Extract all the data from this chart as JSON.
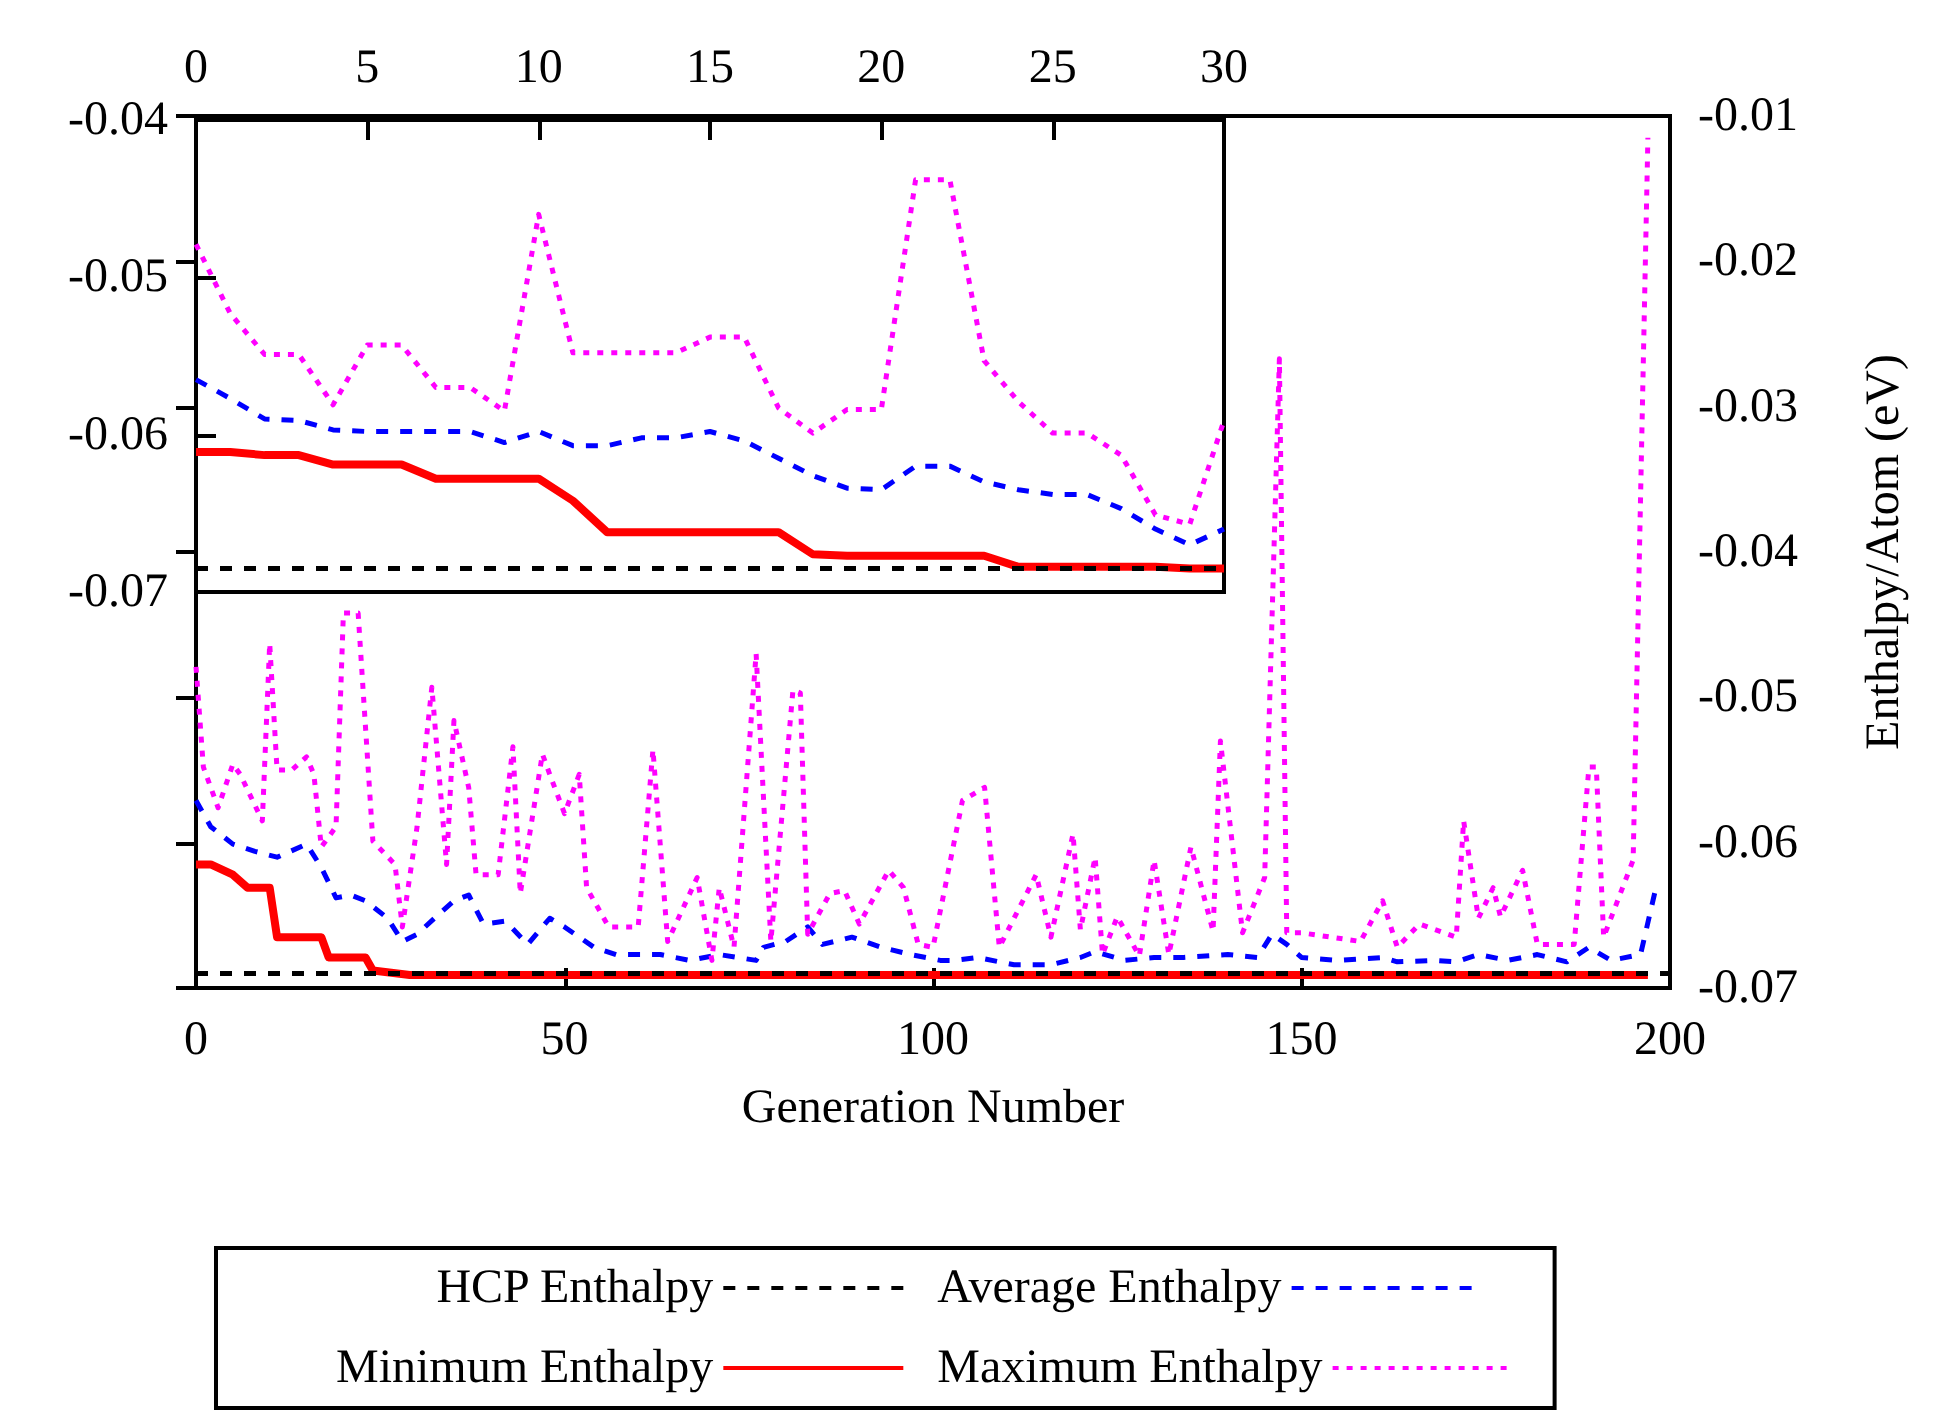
{
  "chart_data": [
    {
      "type": "line",
      "xlabel": "Generation Number",
      "y2label": "Enthalpy/Atom (eV)",
      "xlim": [
        0,
        200
      ],
      "xticks": [
        0,
        50,
        100,
        150,
        200
      ],
      "y2lim": [
        -0.07,
        -0.01
      ],
      "y2ticks": [
        -0.07,
        -0.06,
        -0.05,
        -0.04,
        -0.03,
        -0.02,
        -0.01
      ],
      "legend": "bottom",
      "marker": "none",
      "grid": false,
      "series": [
        {
          "name": "HCP Enthalpy",
          "color": "#000000",
          "line_style": "dashed",
          "axis": "y2",
          "x": [
            0,
            200
          ],
          "values": [
            -0.069,
            -0.069
          ]
        },
        {
          "name": "Average Enthalpy",
          "color": "#0000ff",
          "line_style": "dashed",
          "axis": "y2",
          "x": [
            0,
            2,
            5,
            8,
            11,
            15,
            17,
            19,
            21,
            23,
            26,
            28,
            30,
            33,
            35,
            37,
            39,
            42,
            45,
            48,
            50,
            54,
            57,
            63,
            67,
            71,
            76,
            77,
            80,
            83,
            85,
            89,
            93,
            97,
            101,
            103,
            106,
            111,
            116,
            120,
            122,
            126,
            130,
            134,
            140,
            144,
            146,
            148,
            150,
            155,
            161,
            163,
            168,
            171,
            174,
            178,
            182,
            186,
            189,
            192,
            196,
            198
          ],
          "values": [
            -0.0571,
            -0.0589,
            -0.0601,
            -0.0606,
            -0.061,
            -0.0601,
            -0.0617,
            -0.0638,
            -0.0636,
            -0.064,
            -0.0652,
            -0.0668,
            -0.0663,
            -0.0649,
            -0.064,
            -0.0636,
            -0.0656,
            -0.0654,
            -0.067,
            -0.0652,
            -0.0658,
            -0.0672,
            -0.0677,
            -0.0677,
            -0.0681,
            -0.0677,
            -0.0681,
            -0.0672,
            -0.0668,
            -0.0658,
            -0.067,
            -0.0665,
            -0.0672,
            -0.0677,
            -0.0681,
            -0.0681,
            -0.0679,
            -0.0684,
            -0.0684,
            -0.0679,
            -0.0675,
            -0.0681,
            -0.0679,
            -0.0679,
            -0.0677,
            -0.0679,
            -0.0663,
            -0.067,
            -0.0679,
            -0.0681,
            -0.0679,
            -0.0682,
            -0.0681,
            -0.0682,
            -0.0677,
            -0.0681,
            -0.0677,
            -0.0682,
            -0.0672,
            -0.0681,
            -0.0677,
            -0.0633
          ]
        },
        {
          "name": "Minimum Enthalpy",
          "color": "#ff0000",
          "line_style": "solid",
          "axis": "y2",
          "x": [
            0,
            2,
            5,
            7,
            10,
            11,
            17,
            18,
            23,
            24,
            29,
            197
          ],
          "values": [
            -0.0615,
            -0.0615,
            -0.0622,
            -0.0631,
            -0.0631,
            -0.0665,
            -0.0665,
            -0.0679,
            -0.0679,
            -0.0688,
            -0.0691,
            -0.0691
          ]
        },
        {
          "name": "Maximum Enthalpy",
          "color": "#ff00ff",
          "line_style": "dotted",
          "axis": "y2",
          "x": [
            0,
            1,
            3,
            5,
            6,
            9,
            10,
            11,
            13,
            15,
            16,
            17,
            19,
            20,
            22,
            24,
            27,
            28,
            30,
            32,
            34,
            35,
            37,
            38,
            41,
            43,
            44,
            47,
            48,
            50,
            52,
            53,
            56,
            60,
            62,
            64,
            68,
            70,
            71,
            73,
            76,
            78,
            81,
            82,
            83,
            86,
            88,
            90,
            94,
            96,
            98,
            100,
            104,
            107,
            109,
            114,
            116,
            119,
            120,
            122,
            123,
            125,
            128,
            130,
            132,
            135,
            138,
            139,
            142,
            145,
            147,
            148,
            150,
            158,
            161,
            163,
            166,
            171,
            172,
            174,
            176,
            177,
            180,
            182,
            187,
            189,
            190,
            191,
            195,
            197
          ],
          "values": [
            -0.0479,
            -0.0548,
            -0.0576,
            -0.0546,
            -0.0553,
            -0.0585,
            -0.0463,
            -0.055,
            -0.055,
            -0.0541,
            -0.0553,
            -0.0603,
            -0.0589,
            -0.0442,
            -0.0442,
            -0.0599,
            -0.0615,
            -0.0658,
            -0.0589,
            -0.0493,
            -0.0615,
            -0.0516,
            -0.0562,
            -0.0622,
            -0.0622,
            -0.0534,
            -0.0635,
            -0.0539,
            -0.0553,
            -0.058,
            -0.0553,
            -0.0631,
            -0.0658,
            -0.0658,
            -0.0536,
            -0.0668,
            -0.0624,
            -0.0681,
            -0.0631,
            -0.0672,
            -0.047,
            -0.0668,
            -0.0495,
            -0.0497,
            -0.0663,
            -0.0635,
            -0.0633,
            -0.0656,
            -0.0619,
            -0.0631,
            -0.067,
            -0.0672,
            -0.0571,
            -0.0562,
            -0.0672,
            -0.0622,
            -0.0665,
            -0.0594,
            -0.066,
            -0.061,
            -0.0677,
            -0.0651,
            -0.0678,
            -0.0612,
            -0.0677,
            -0.0603,
            -0.0661,
            -0.053,
            -0.0662,
            -0.0624,
            -0.0267,
            -0.0662,
            -0.0662,
            -0.0668,
            -0.064,
            -0.0672,
            -0.0656,
            -0.0665,
            -0.0585,
            -0.0652,
            -0.0631,
            -0.0651,
            -0.0619,
            -0.067,
            -0.067,
            -0.0548,
            -0.0548,
            -0.0665,
            -0.0612,
            -0.0115
          ]
        }
      ]
    },
    {
      "type": "line",
      "x": [
        0,
        1,
        2,
        3,
        4,
        5,
        6,
        7,
        8,
        9,
        10,
        11,
        12,
        13,
        14,
        15,
        16,
        17,
        18,
        19,
        20,
        21,
        22,
        23,
        24,
        25,
        26,
        27,
        28,
        29,
        30
      ],
      "xlim": [
        0,
        30
      ],
      "xticks": [
        0,
        5,
        10,
        15,
        20,
        25,
        30
      ],
      "ylim": [
        -0.07,
        -0.04
      ],
      "yticks": [
        -0.07,
        -0.06,
        -0.05,
        -0.04
      ],
      "marker": "none",
      "grid": false,
      "series": [
        {
          "color": "#000000",
          "line_style": "dashed",
          "x": [
            0,
            30
          ],
          "values": [
            -0.0685,
            -0.0685
          ]
        },
        {
          "color": "#0000ff",
          "line_style": "dashed",
          "values": [
            -0.0565,
            -0.0577,
            -0.059,
            -0.0591,
            -0.0597,
            -0.0598,
            -0.0598,
            -0.0598,
            -0.0598,
            -0.0605,
            -0.0598,
            -0.0607,
            -0.0607,
            -0.0602,
            -0.0602,
            -0.0598,
            -0.0604,
            -0.0615,
            -0.0626,
            -0.0634,
            -0.0635,
            -0.062,
            -0.062,
            -0.063,
            -0.0635,
            -0.0638,
            -0.0638,
            -0.0647,
            -0.066,
            -0.067,
            -0.066
          ]
        },
        {
          "color": "#ff0000",
          "line_style": "solid",
          "values": [
            -0.0611,
            -0.0611,
            -0.0613,
            -0.0613,
            -0.0619,
            -0.0619,
            -0.0619,
            -0.0628,
            -0.0628,
            -0.0628,
            -0.0628,
            -0.0642,
            -0.0662,
            -0.0662,
            -0.0662,
            -0.0662,
            -0.0662,
            -0.0662,
            -0.0676,
            -0.0677,
            -0.0677,
            -0.0677,
            -0.0677,
            -0.0677,
            -0.0684,
            -0.0684,
            -0.0684,
            -0.0684,
            -0.0684,
            -0.0685,
            -0.0685
          ]
        },
        {
          "color": "#ff00ff",
          "line_style": "dotted",
          "values": [
            -0.0479,
            -0.0523,
            -0.0549,
            -0.0549,
            -0.0581,
            -0.0543,
            -0.0543,
            -0.057,
            -0.057,
            -0.0585,
            -0.046,
            -0.0548,
            -0.0548,
            -0.0548,
            -0.0548,
            -0.0538,
            -0.0538,
            -0.0583,
            -0.0599,
            -0.0584,
            -0.0584,
            -0.0438,
            -0.0438,
            -0.0553,
            -0.0579,
            -0.0599,
            -0.0599,
            -0.0613,
            -0.0651,
            -0.0657,
            -0.0591
          ]
        }
      ]
    }
  ]
}
